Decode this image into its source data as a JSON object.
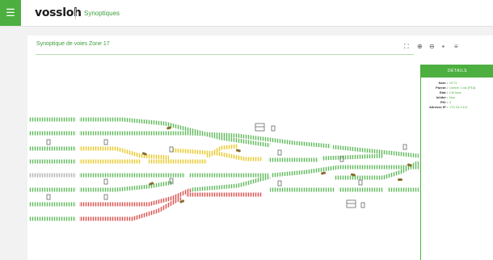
{
  "app": {
    "logo": "vossloh",
    "nav_title": "Synoptiques",
    "menu_icon": "hamburger-icon"
  },
  "panel": {
    "title": "Synoptique de voies Zone 17",
    "tools": [
      "expand-icon",
      "zoom-in-icon",
      "zoom-out-icon",
      "comment-icon",
      "list-icon"
    ]
  },
  "details": {
    "header": "DÉTAILS",
    "rows": [
      {
        "label": "Nom :",
        "value": "S1T2"
      },
      {
        "label": "Parent :",
        "value": "Centre 1 bis (P16)"
      },
      {
        "label": "Etat :",
        "value": "Clé faux"
      },
      {
        "label": "Inhibé :",
        "value": "Non"
      },
      {
        "label": "PKI :",
        "value": "0"
      },
      {
        "label": "Adresse IP :",
        "value": "172.16.3.111"
      }
    ]
  },
  "colors": {
    "accent": "#4caf3f",
    "track_green": "#5cb85c",
    "track_yellow": "#e6c93a",
    "track_red": "#d9534f",
    "track_grey": "#b5b5b5"
  }
}
